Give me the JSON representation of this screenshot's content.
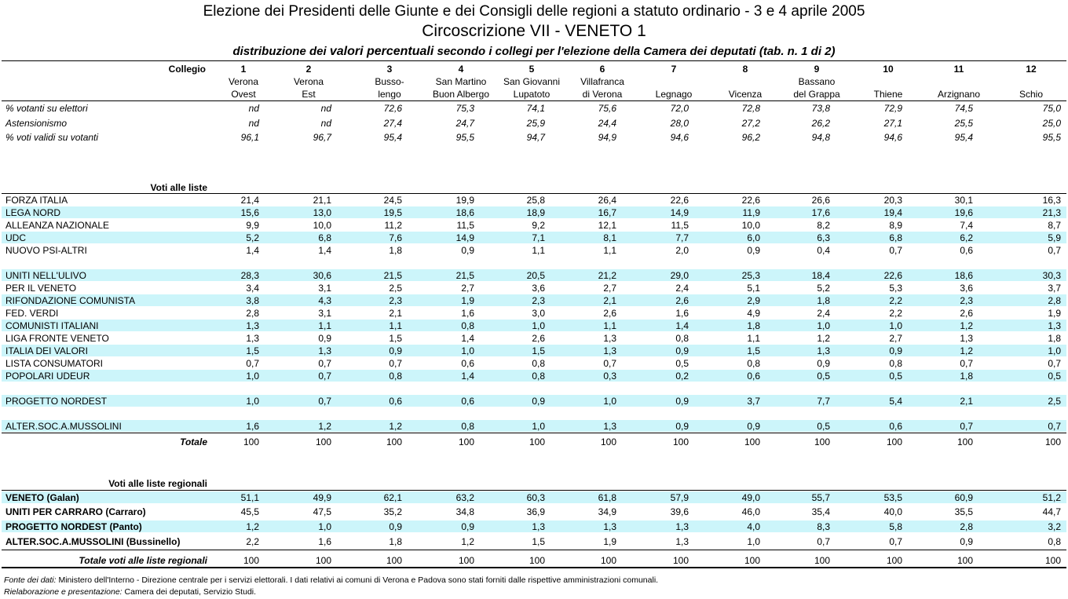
{
  "header": {
    "title": "Elezione dei Presidenti delle Giunte e dei Consigli delle regioni a statuto ordinario - 3 e 4 aprile 2005",
    "subtitle": "Circoscrizione VII - VENETO 1",
    "caption_pre": "distribuzione dei ",
    "caption_highlight": "valori percentuali",
    "caption_post": "  secondo i collegi per l'elezione della Camera dei deputati (tab. n. 1 di 2)"
  },
  "table": {
    "collegio_label": "Collegio",
    "columns": [
      {
        "num": "1",
        "name1": "Verona",
        "name2": "Ovest"
      },
      {
        "num": "2",
        "name1": "Verona",
        "name2": "Est"
      },
      {
        "num": "3",
        "name1": "Busso-",
        "name2": "lengo"
      },
      {
        "num": "4",
        "name1": "San Martino",
        "name2": "Buon Albergo"
      },
      {
        "num": "5",
        "name1": "San Giovanni",
        "name2": "Lupatoto"
      },
      {
        "num": "6",
        "name1": "Villafranca",
        "name2": "di Verona"
      },
      {
        "num": "7",
        "name1": "",
        "name2": "Legnago"
      },
      {
        "num": "8",
        "name1": "",
        "name2": "Vicenza"
      },
      {
        "num": "9",
        "name1": "Bassano",
        "name2": "del Grappa"
      },
      {
        "num": "10",
        "name1": "",
        "name2": "Thiene"
      },
      {
        "num": "11",
        "name1": "",
        "name2": "Arzignano"
      },
      {
        "num": "12",
        "name1": "",
        "name2": "Schio"
      }
    ],
    "stats": [
      {
        "label": "% votanti su elettori",
        "values": [
          "nd",
          "nd",
          "72,6",
          "75,3",
          "74,1",
          "75,6",
          "72,0",
          "72,8",
          "73,8",
          "72,9",
          "74,5",
          "75,0"
        ]
      },
      {
        "label": "Astensionismo",
        "values": [
          "nd",
          "nd",
          "27,4",
          "24,7",
          "25,9",
          "24,4",
          "28,0",
          "27,2",
          "26,2",
          "27,1",
          "25,5",
          "25,0"
        ]
      },
      {
        "label": "% voti validi su votanti",
        "values": [
          "96,1",
          "96,7",
          "95,4",
          "95,5",
          "94,7",
          "94,9",
          "94,6",
          "96,2",
          "94,8",
          "94,6",
          "95,4",
          "95,5"
        ]
      }
    ],
    "liste_heading": "Voti alle liste",
    "liste": [
      {
        "label": "FORZA ITALIA",
        "values": [
          "21,4",
          "21,1",
          "24,5",
          "19,9",
          "25,8",
          "26,4",
          "22,6",
          "22,6",
          "26,6",
          "20,3",
          "30,1",
          "16,3"
        ]
      },
      {
        "label": "LEGA NORD",
        "values": [
          "15,6",
          "13,0",
          "19,5",
          "18,6",
          "18,9",
          "16,7",
          "14,9",
          "11,9",
          "17,6",
          "19,4",
          "19,6",
          "21,3"
        ]
      },
      {
        "label": "ALLEANZA NAZIONALE",
        "values": [
          "9,9",
          "10,0",
          "11,2",
          "11,5",
          "9,2",
          "12,1",
          "11,5",
          "10,0",
          "8,2",
          "8,9",
          "7,4",
          "8,7"
        ]
      },
      {
        "label": "UDC",
        "values": [
          "5,2",
          "6,8",
          "7,6",
          "14,9",
          "7,1",
          "8,1",
          "7,7",
          "6,0",
          "6,3",
          "6,8",
          "6,2",
          "5,9"
        ]
      },
      {
        "label": "NUOVO PSI-ALTRI",
        "values": [
          "1,4",
          "1,4",
          "1,8",
          "0,9",
          "1,1",
          "1,1",
          "2,0",
          "0,9",
          "0,4",
          "0,7",
          "0,6",
          "0,7"
        ]
      },
      {
        "label": "UNITI NELL'ULIVO",
        "values": [
          "28,3",
          "30,6",
          "21,5",
          "21,5",
          "20,5",
          "21,2",
          "29,0",
          "25,3",
          "18,4",
          "22,6",
          "18,6",
          "30,3"
        ]
      },
      {
        "label": "PER IL VENETO",
        "values": [
          "3,4",
          "3,1",
          "2,5",
          "2,7",
          "3,6",
          "2,7",
          "2,4",
          "5,1",
          "5,2",
          "5,3",
          "3,6",
          "3,7"
        ]
      },
      {
        "label": "RIFONDAZIONE COMUNISTA",
        "values": [
          "3,8",
          "4,3",
          "2,3",
          "1,9",
          "2,3",
          "2,1",
          "2,6",
          "2,9",
          "1,8",
          "2,2",
          "2,3",
          "2,8"
        ]
      },
      {
        "label": "FED. VERDI",
        "values": [
          "2,8",
          "3,1",
          "2,1",
          "1,6",
          "3,0",
          "2,6",
          "1,6",
          "4,9",
          "2,4",
          "2,2",
          "2,6",
          "1,9"
        ]
      },
      {
        "label": "COMUNISTI ITALIANI",
        "values": [
          "1,3",
          "1,1",
          "1,1",
          "0,8",
          "1,0",
          "1,1",
          "1,4",
          "1,8",
          "1,0",
          "1,0",
          "1,2",
          "1,3"
        ]
      },
      {
        "label": "LIGA FRONTE VENETO",
        "values": [
          "1,3",
          "0,9",
          "1,5",
          "1,4",
          "2,6",
          "1,3",
          "0,8",
          "1,1",
          "1,2",
          "2,7",
          "1,3",
          "1,8"
        ]
      },
      {
        "label": "ITALIA DEI VALORI",
        "values": [
          "1,5",
          "1,3",
          "0,9",
          "1,0",
          "1,5",
          "1,3",
          "0,9",
          "1,5",
          "1,3",
          "0,9",
          "1,2",
          "1,0"
        ]
      },
      {
        "label": "LISTA CONSUMATORI",
        "values": [
          "0,7",
          "0,7",
          "0,7",
          "0,6",
          "0,8",
          "0,7",
          "0,5",
          "0,8",
          "0,9",
          "0,8",
          "0,7",
          "0,7"
        ]
      },
      {
        "label": "POPOLARI UDEUR",
        "values": [
          "1,0",
          "0,7",
          "0,8",
          "1,4",
          "0,8",
          "0,3",
          "0,2",
          "0,6",
          "0,5",
          "0,5",
          "1,8",
          "0,5"
        ]
      },
      {
        "label": "PROGETTO NORDEST",
        "values": [
          "1,0",
          "0,7",
          "0,6",
          "0,6",
          "0,9",
          "1,0",
          "0,9",
          "3,7",
          "7,7",
          "5,4",
          "2,1",
          "2,5"
        ]
      },
      {
        "label": "ALTER.SOC.A.MUSSOLINI",
        "values": [
          "1,6",
          "1,2",
          "1,2",
          "0,8",
          "1,0",
          "1,3",
          "0,9",
          "0,9",
          "0,5",
          "0,6",
          "0,7",
          "0,7"
        ]
      }
    ],
    "totale": {
      "label": "Totale",
      "values": [
        "100",
        "100",
        "100",
        "100",
        "100",
        "100",
        "100",
        "100",
        "100",
        "100",
        "100",
        "100"
      ]
    },
    "regionali_heading": "Voti alle liste regionali",
    "regionali": [
      {
        "label": "VENETO (Galan)",
        "values": [
          "51,1",
          "49,9",
          "62,1",
          "63,2",
          "60,3",
          "61,8",
          "57,9",
          "49,0",
          "55,7",
          "53,5",
          "60,9",
          "51,2"
        ]
      },
      {
        "label": "UNITI PER CARRARO (Carraro)",
        "values": [
          "45,5",
          "47,5",
          "35,2",
          "34,8",
          "36,9",
          "34,9",
          "39,6",
          "46,0",
          "35,4",
          "40,0",
          "35,5",
          "44,7"
        ]
      },
      {
        "label": "PROGETTO NORDEST (Panto)",
        "values": [
          "1,2",
          "1,0",
          "0,9",
          "0,9",
          "1,3",
          "1,3",
          "1,3",
          "4,0",
          "8,3",
          "5,8",
          "2,8",
          "3,2"
        ]
      },
      {
        "label": "ALTER.SOC.A.MUSSOLINI (Bussinello)",
        "values": [
          "2,2",
          "1,6",
          "1,8",
          "1,2",
          "1,5",
          "1,9",
          "1,3",
          "1,0",
          "0,7",
          "0,7",
          "0,9",
          "0,8"
        ]
      }
    ],
    "totale_regionali": {
      "label": "Totale voti alle liste regionali",
      "values": [
        "100",
        "100",
        "100",
        "100",
        "100",
        "100",
        "100",
        "100",
        "100",
        "100",
        "100",
        "100"
      ]
    }
  },
  "footer": {
    "fonte_label": "Fonte dei dati:",
    "fonte_text": " Ministero dell'Interno - Direzione centrale per i servizi elettorali. I dati relativi ai comuni di Verona e Padova  sono stati forniti dalle rispettive amministrazioni comunali.",
    "rielab_label": "Rielaborazione e presentazione:",
    "rielab_text": " Camera dei deputati, Servizio Studi."
  },
  "colors": {
    "band": "#ccf5fa"
  }
}
